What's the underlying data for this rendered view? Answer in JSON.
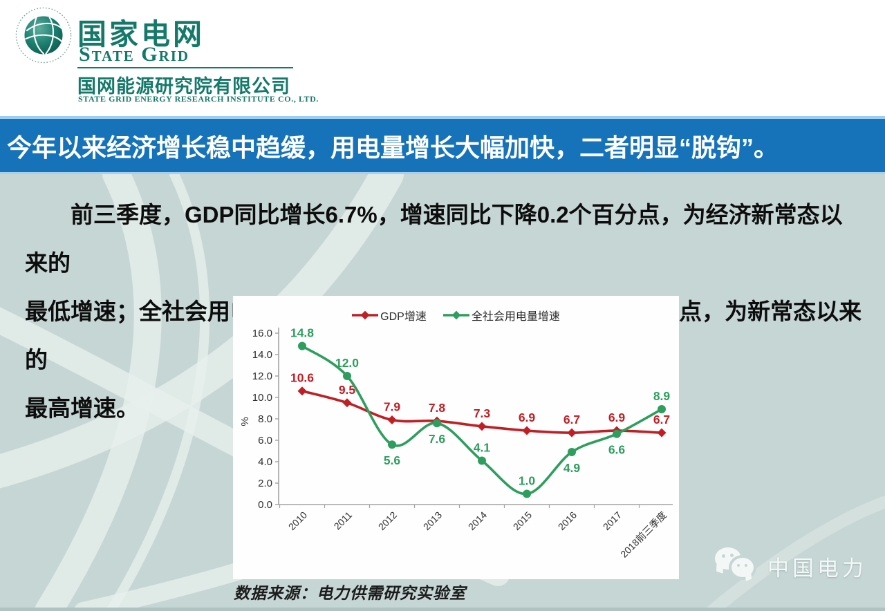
{
  "header": {
    "brand_cn": "国家电网",
    "brand_en": "State Grid",
    "org_cn": "国网能源研究院有限公司",
    "org_en": "STATE GRID ENERGY RESEARCH INSTITUTE CO., LTD."
  },
  "banner": {
    "title": "今年以来经济增长稳中趋缓，用电量增长大幅加快，二者明显“脱钩”。"
  },
  "paragraph": {
    "lines": [
      "前三季度，GDP同比增长6.7%，增速同比下降0.2个百分点，为经济新常态以来的",
      "最低增速；全社会用电量同比增长8.9%，增速同比上升2.0个百分点，为新常态以来的",
      "最高增速。"
    ]
  },
  "chart_data": {
    "type": "line",
    "title": "",
    "categories": [
      "2010",
      "2011",
      "2012",
      "2013",
      "2014",
      "2015",
      "2016",
      "2017",
      "2018前三季度"
    ],
    "series": [
      {
        "name": "GDP增速",
        "color": "#bf1f25",
        "marker": "diamond",
        "values": [
          10.6,
          9.5,
          7.9,
          7.8,
          7.3,
          6.9,
          6.7,
          6.9,
          6.7
        ],
        "label_positions": [
          "above",
          "above",
          "above",
          "above",
          "above",
          "above",
          "above",
          "above",
          "above"
        ]
      },
      {
        "name": "全社会用电量增速",
        "color": "#2e9e5e",
        "marker": "circle",
        "values": [
          14.8,
          12.0,
          5.6,
          7.6,
          4.1,
          1.0,
          4.9,
          6.6,
          8.9
        ],
        "label_positions": [
          "above",
          "above",
          "below",
          "below",
          "above",
          "above",
          "below",
          "below",
          "above"
        ]
      }
    ],
    "xlabel": "",
    "ylabel": "%",
    "ylim": [
      0,
      16
    ],
    "ytick_step": 2,
    "ytick_format": "one-decimal",
    "legend_position": "top-center",
    "grid": false
  },
  "footer": {
    "source": "数据来源：电力供需研究实验室"
  },
  "watermark": {
    "label": "中国电力",
    "icon": "wechat-icon"
  },
  "colors": {
    "banner_blue": "#1673b9",
    "banner_edge_blue": "#9dcdf0",
    "background_teal": "#c6d6d4",
    "brand_green": "#15796a",
    "gdp_red": "#bf1f25",
    "electricity_green": "#2e9e5e"
  }
}
